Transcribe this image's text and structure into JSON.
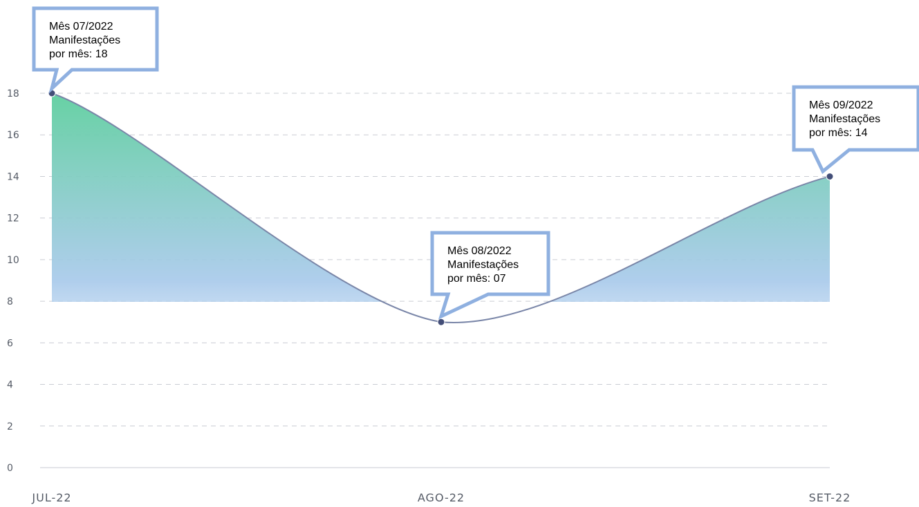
{
  "colors": {
    "line": "#7a86a8",
    "point": "#434e78",
    "fill_top": "#5fcf9f",
    "fill_mid": "#a6c8ea",
    "callout_border": "#8fb0e0",
    "grid": "#c9ccd3"
  },
  "chart_data": {
    "type": "area",
    "categories": [
      "JUL-22",
      "AGO-22",
      "SET-22"
    ],
    "values": [
      18,
      7,
      14
    ],
    "ylim": [
      0,
      18
    ],
    "yticks": [
      0,
      2,
      4,
      6,
      8,
      10,
      12,
      14,
      16,
      18
    ],
    "grid": "dashed horizontal",
    "annotations": [
      {
        "lines": [
          "Mês 07/2022",
          "Manifestações",
          "por mês: 18"
        ]
      },
      {
        "lines": [
          "Mês 08/2022",
          "Manifestações",
          "por mês: 07"
        ]
      },
      {
        "lines": [
          "Mês 09/2022",
          "Manifestações",
          "por mês: 14"
        ]
      }
    ]
  }
}
